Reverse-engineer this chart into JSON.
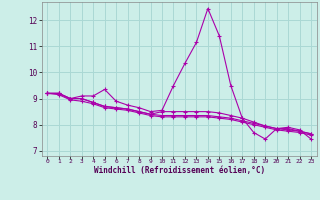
{
  "xlabel": "Windchill (Refroidissement éolien,°C)",
  "background_color": "#cceee8",
  "grid_color": "#aad8d4",
  "line_color": "#aa00aa",
  "xlim": [
    -0.5,
    23.5
  ],
  "ylim": [
    6.8,
    12.7
  ],
  "yticks": [
    7,
    8,
    9,
    10,
    11,
    12
  ],
  "xticks": [
    0,
    1,
    2,
    3,
    4,
    5,
    6,
    7,
    8,
    9,
    10,
    11,
    12,
    13,
    14,
    15,
    16,
    17,
    18,
    19,
    20,
    21,
    22,
    23
  ],
  "series": [
    [
      9.2,
      9.2,
      9.0,
      9.1,
      9.1,
      9.35,
      8.9,
      8.75,
      8.65,
      8.5,
      8.55,
      9.5,
      10.35,
      11.15,
      12.45,
      11.4,
      9.5,
      8.25,
      7.7,
      7.45,
      7.85,
      7.9,
      7.8,
      7.45
    ],
    [
      9.2,
      9.2,
      9.0,
      9.0,
      8.85,
      8.7,
      8.65,
      8.6,
      8.5,
      8.4,
      8.35,
      8.35,
      8.35,
      8.35,
      8.35,
      8.3,
      8.25,
      8.15,
      8.05,
      7.95,
      7.85,
      7.8,
      7.75,
      7.65
    ],
    [
      9.2,
      9.2,
      9.0,
      9.0,
      8.85,
      8.7,
      8.65,
      8.6,
      8.5,
      8.4,
      8.5,
      8.5,
      8.5,
      8.5,
      8.5,
      8.45,
      8.35,
      8.25,
      8.1,
      7.95,
      7.85,
      7.85,
      7.75,
      7.65
    ],
    [
      9.2,
      9.15,
      8.95,
      8.9,
      8.8,
      8.65,
      8.6,
      8.55,
      8.45,
      8.35,
      8.3,
      8.3,
      8.3,
      8.3,
      8.3,
      8.25,
      8.2,
      8.1,
      8.0,
      7.9,
      7.8,
      7.75,
      7.7,
      7.6
    ]
  ]
}
